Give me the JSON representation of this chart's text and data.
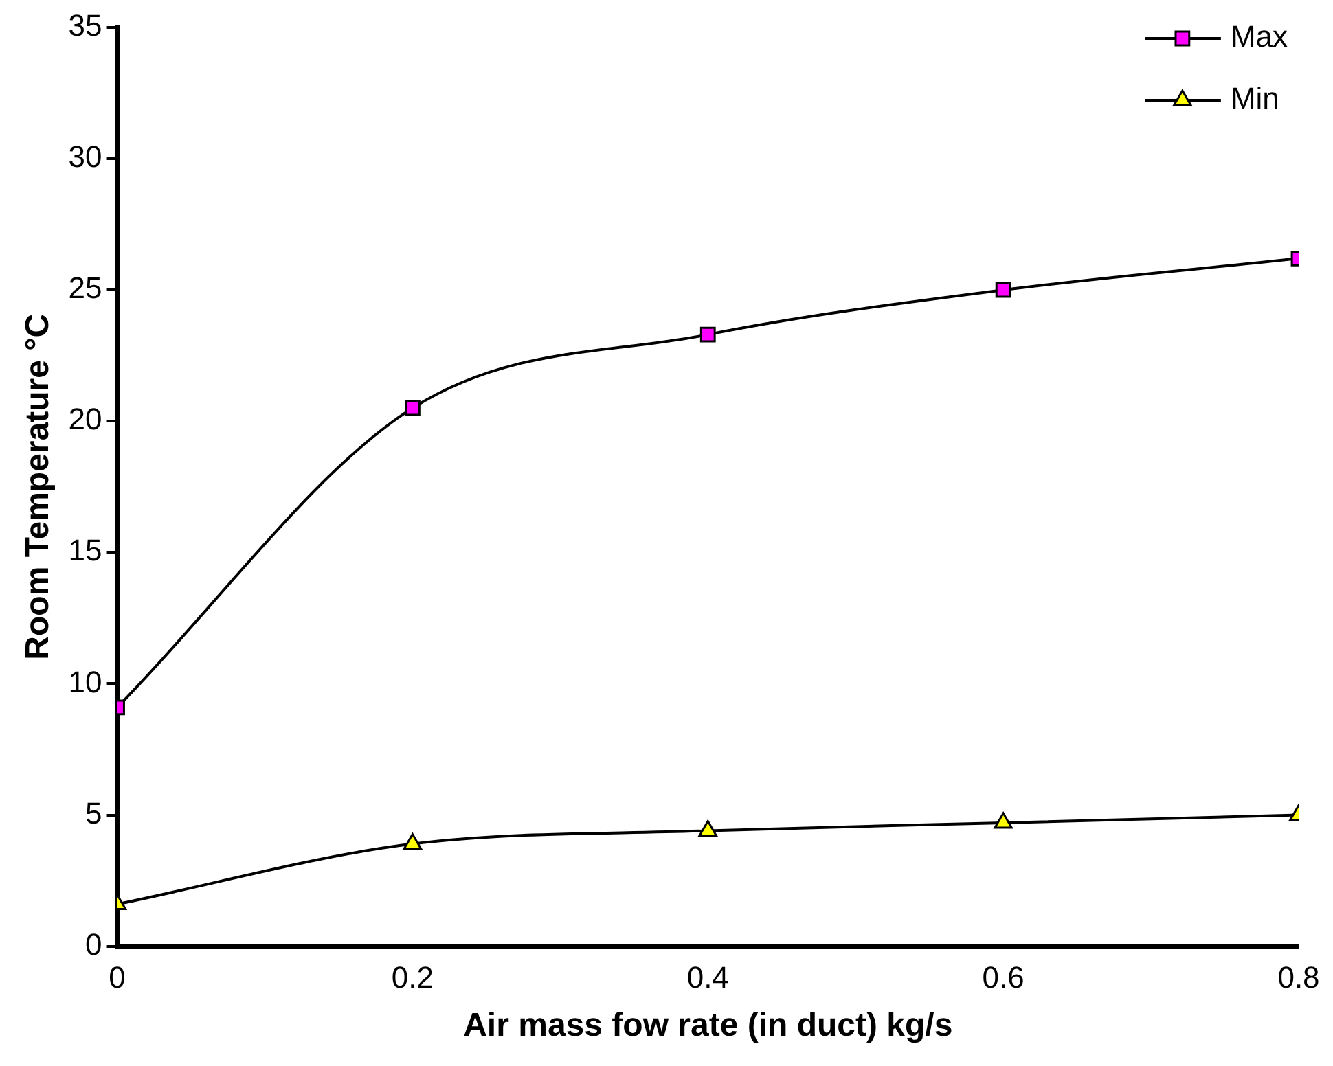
{
  "chart_data": {
    "type": "line",
    "xlabel": "Air mass fow rate (in duct) kg/s",
    "ylabel": "Room Temperature °C",
    "x": [
      0,
      0.2,
      0.4,
      0.6,
      0.8
    ],
    "series": [
      {
        "name": "Max",
        "color": "#ff00ff",
        "marker": "square",
        "values": [
          9.1,
          20.5,
          23.3,
          25.0,
          26.2
        ]
      },
      {
        "name": "Min",
        "color": "#ffff00",
        "marker": "triangle",
        "values": [
          1.6,
          3.9,
          4.4,
          4.7,
          5.0
        ]
      }
    ],
    "xlim": [
      0,
      0.8
    ],
    "xticks": [
      0,
      0.2,
      0.4,
      0.6,
      0.8
    ],
    "ylim": [
      0,
      35
    ],
    "yticks": [
      0,
      5,
      10,
      15,
      20,
      25,
      30,
      35
    ],
    "grid": false,
    "legend": "top right",
    "line_style": "solid"
  }
}
